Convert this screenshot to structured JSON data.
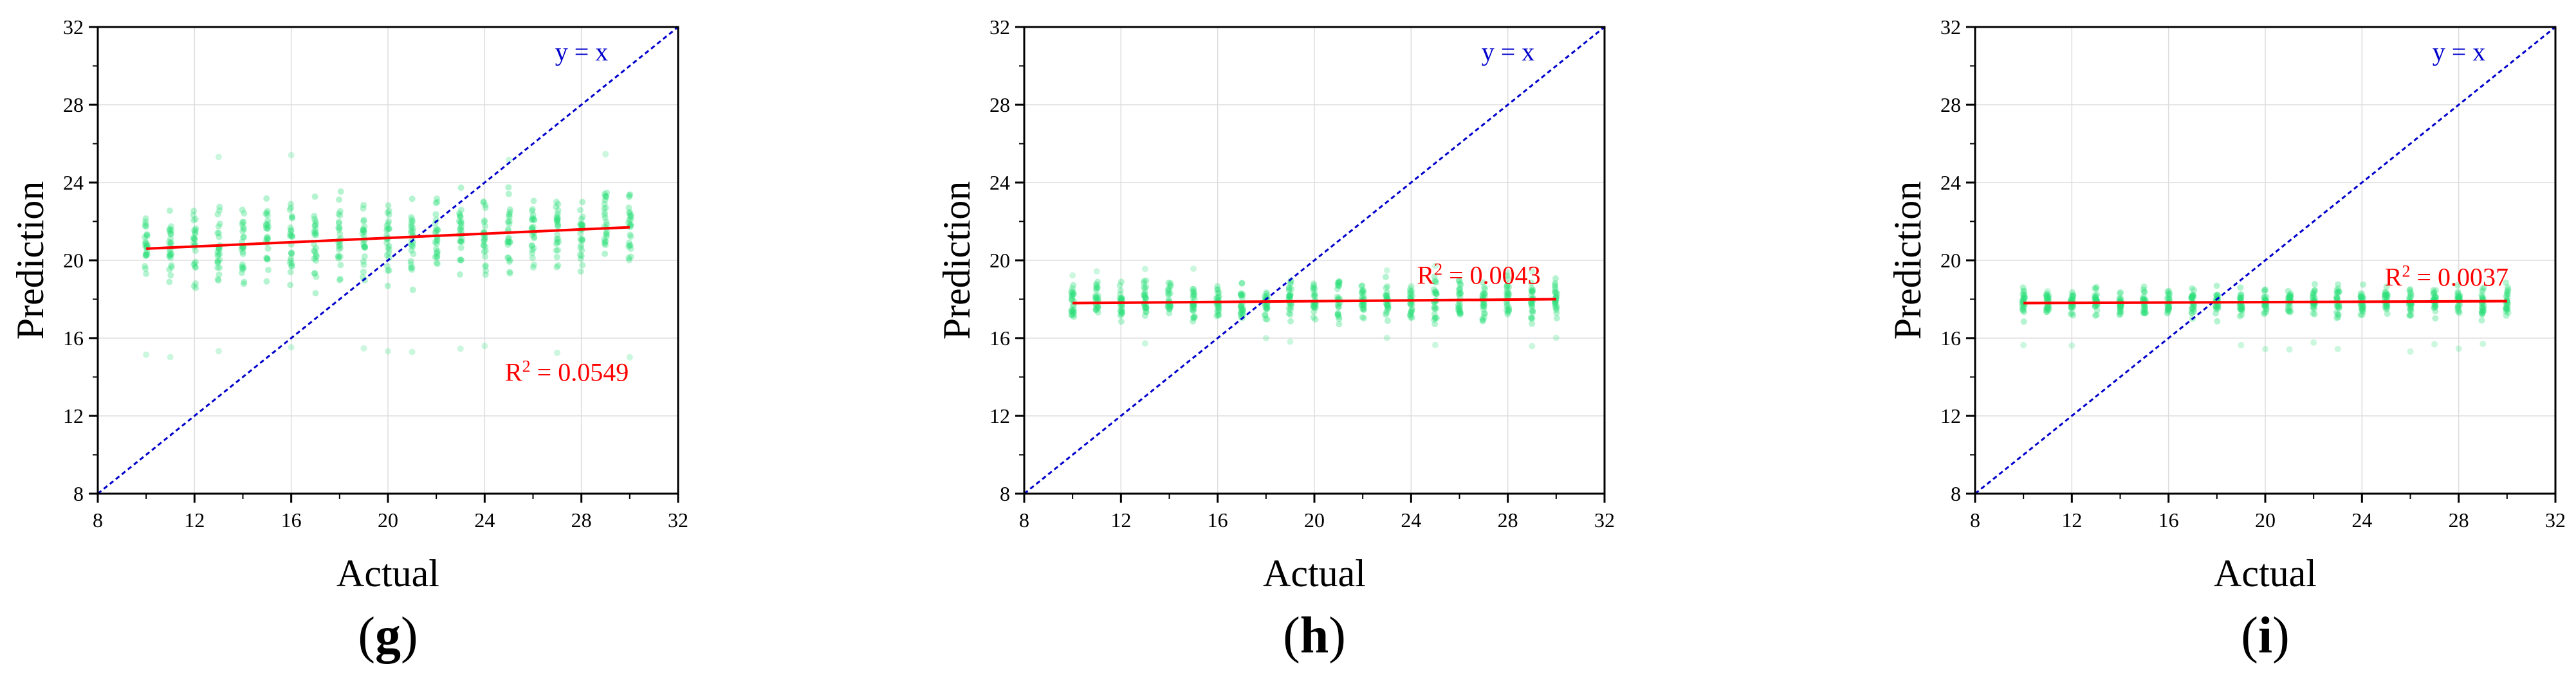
{
  "colors": {
    "points": "#2ee07a",
    "fit_line": "#ff0000",
    "identity_line": "#0000cc",
    "grid": "#dddddd",
    "axis": "#000000"
  },
  "chart_data": [
    {
      "type": "scatter",
      "panel_label": {
        "open": "(",
        "letter": "g",
        "close": ")"
      },
      "xlabel": "Actual",
      "ylabel": "Prediction",
      "xlim": [
        8,
        32
      ],
      "ylim": [
        8,
        32
      ],
      "xticks": [
        "8",
        "12",
        "16",
        "20",
        "24",
        "28",
        "32"
      ],
      "yticks": [
        "8",
        "12",
        "16",
        "20",
        "24",
        "28",
        "32"
      ],
      "grid": true,
      "identity_label": "y = x",
      "r2": {
        "prefix": "R",
        "sup": "2",
        "value": " = 0.0549"
      },
      "fit": {
        "x": [
          10,
          30
        ],
        "y": [
          20.6,
          21.7
        ]
      },
      "point_columns": {
        "x_start": 10,
        "x_end": 30,
        "step": 1,
        "center_start": 20.6,
        "center_end": 21.7,
        "half_spread": 2.4,
        "outlier_low": 15.0,
        "outlier_high": 25.6
      }
    },
    {
      "type": "scatter",
      "panel_label": {
        "open": "(",
        "letter": "h",
        "close": ")"
      },
      "xlabel": "Actual",
      "ylabel": "Prediction",
      "xlim": [
        8,
        32
      ],
      "ylim": [
        8,
        32
      ],
      "xticks": [
        "8",
        "12",
        "16",
        "20",
        "24",
        "28",
        "32"
      ],
      "yticks": [
        "8",
        "12",
        "16",
        "20",
        "24",
        "28",
        "32"
      ],
      "grid": true,
      "identity_label": "y = x",
      "r2": {
        "prefix": "R",
        "sup": "2",
        "value": " = 0.0043"
      },
      "fit": {
        "x": [
          10,
          30
        ],
        "y": [
          17.8,
          18.0
        ]
      },
      "point_columns": {
        "x_start": 10,
        "x_end": 30,
        "step": 1,
        "center_start": 17.8,
        "center_end": 18.0,
        "half_spread": 1.2,
        "outlier_low": 15.5,
        "outlier_high": 19.8
      }
    },
    {
      "type": "scatter",
      "panel_label": {
        "open": "(",
        "letter": "i",
        "close": ")"
      },
      "xlabel": "Actual",
      "ylabel": "Prediction",
      "xlim": [
        8,
        32
      ],
      "ylim": [
        8,
        32
      ],
      "xticks": [
        "8",
        "12",
        "16",
        "20",
        "24",
        "28",
        "32"
      ],
      "yticks": [
        "8",
        "12",
        "16",
        "20",
        "24",
        "28",
        "32"
      ],
      "grid": true,
      "identity_label": "y = x",
      "r2": {
        "prefix": "R",
        "sup": "2",
        "value": " = 0.0037"
      },
      "fit": {
        "x": [
          10,
          30
        ],
        "y": [
          17.8,
          17.9
        ]
      },
      "point_columns": {
        "x_start": 10,
        "x_end": 30,
        "step": 1,
        "center_start": 17.8,
        "center_end": 17.9,
        "half_spread": 0.9,
        "outlier_low": 15.3,
        "outlier_high": 18.5
      }
    }
  ]
}
